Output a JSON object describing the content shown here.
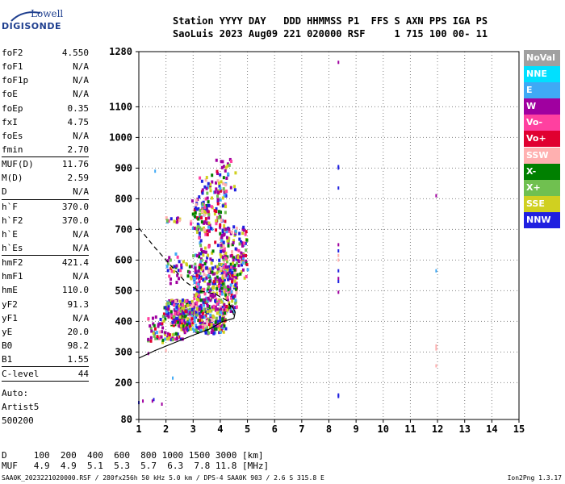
{
  "logo": {
    "line1": "Lowell",
    "line2": "DIGISONDE"
  },
  "header": {
    "line1": "Station YYYY DAY   DDD HHMMSS P1  FFS S AXN PPS IGA PS",
    "line2": "SaoLuis 2023 Aug09 221 020000 RSF     1 715 100 00- 11"
  },
  "params": [
    [
      {
        "name": "foF2",
        "value": "4.550"
      },
      {
        "name": "foF1",
        "value": "N/A"
      },
      {
        "name": "foF1p",
        "value": "N/A"
      },
      {
        "name": "foE",
        "value": "N/A"
      },
      {
        "name": "foEp",
        "value": "0.35"
      },
      {
        "name": "fxI",
        "value": "4.75"
      },
      {
        "name": "foEs",
        "value": "N/A"
      },
      {
        "name": "fmin",
        "value": "2.70"
      }
    ],
    [
      {
        "name": "MUF(D)",
        "value": "11.76"
      },
      {
        "name": "M(D)",
        "value": "2.59"
      },
      {
        "name": "D",
        "value": "N/A"
      }
    ],
    [
      {
        "name": "h`F",
        "value": "370.0"
      },
      {
        "name": "h`F2",
        "value": "370.0"
      },
      {
        "name": "h`E",
        "value": "N/A"
      },
      {
        "name": "h`Es",
        "value": "N/A"
      }
    ],
    [
      {
        "name": "hmF2",
        "value": "421.4"
      },
      {
        "name": "hmF1",
        "value": "N/A"
      },
      {
        "name": "hmE",
        "value": "110.0"
      },
      {
        "name": "yF2",
        "value": "91.3"
      },
      {
        "name": "yF1",
        "value": "N/A"
      },
      {
        "name": "yE",
        "value": "20.0"
      },
      {
        "name": "B0",
        "value": "98.2"
      },
      {
        "name": "B1",
        "value": "1.55"
      }
    ],
    [
      {
        "name": "C-level",
        "value": "44"
      }
    ]
  ],
  "auto": {
    "line1": "Auto:",
    "line2": "Artist5",
    "line3": "500200"
  },
  "legend": [
    {
      "label": "NoVal",
      "color": "#a0a0a0",
      "text": "#ffffff"
    },
    {
      "label": "NNE",
      "color": "#00e0ff",
      "text": "#ffffff"
    },
    {
      "label": "E",
      "color": "#3fa9f5",
      "text": "#ffffff"
    },
    {
      "label": "W",
      "color": "#a000a0",
      "text": "#ffffff"
    },
    {
      "label": "Vo-",
      "color": "#ff40a0",
      "text": "#ffffff"
    },
    {
      "label": "Vo+",
      "color": "#e00030",
      "text": "#ffffff"
    },
    {
      "label": "SSW",
      "color": "#ffb0b0",
      "text": "#ffffff"
    },
    {
      "label": "X-",
      "color": "#008000",
      "text": "#ffffff"
    },
    {
      "label": "X+",
      "color": "#70c050",
      "text": "#ffffff"
    },
    {
      "label": "SSE",
      "color": "#d0d020",
      "text": "#ffffff"
    },
    {
      "label": "NNW",
      "color": "#2020e0",
      "text": "#ffffff"
    }
  ],
  "bottom": {
    "line1": "D     100  200  400  600  800 1000 1500 3000 [km]",
    "line2": "MUF   4.9  4.9  5.1  5.3  5.7  6.3  7.8 11.8 [MHz]"
  },
  "footer": {
    "text": "SAA0K_2023221020000.RSF / 280fx256h 50 kHz 5.0 km / DPS-4 SAA0K 903 / 2.6 S 315.8 E",
    "version": "Ion2Png 1.3.17"
  },
  "chart_data": {
    "type": "scatter",
    "xlim": [
      1,
      15
    ],
    "ylim": [
      80,
      1280
    ],
    "x_ticks": [
      "1",
      "2",
      "3",
      "4",
      "5",
      "6",
      "7",
      "8",
      "9",
      "10",
      "11",
      "12",
      "13",
      "14",
      "15"
    ],
    "y_ticks": [
      80,
      200,
      300,
      400,
      500,
      600,
      700,
      800,
      900,
      1000,
      1100,
      1280
    ],
    "grid": true,
    "trace_dashed": [
      [
        1.0,
        705
      ],
      [
        1.6,
        640
      ],
      [
        2.2,
        580
      ],
      [
        2.7,
        530
      ],
      [
        3.2,
        500
      ],
      [
        3.8,
        490
      ],
      [
        4.3,
        465
      ],
      [
        4.5,
        420
      ]
    ],
    "trace_solid": [
      [
        1.0,
        280
      ],
      [
        1.6,
        305
      ],
      [
        2.3,
        330
      ],
      [
        3.0,
        355
      ],
      [
        3.6,
        375
      ],
      [
        4.1,
        400
      ],
      [
        4.5,
        410
      ],
      [
        4.55,
        430
      ],
      [
        4.45,
        448
      ],
      [
        4.3,
        455
      ]
    ],
    "echoes": [
      {
        "x": 8.35,
        "y": 1245,
        "c": "#a000a0"
      },
      {
        "x": 8.35,
        "y": 905,
        "c": "#2020e0"
      },
      {
        "x": 8.35,
        "y": 900,
        "c": "#2020e0"
      },
      {
        "x": 8.35,
        "y": 835,
        "c": "#2020e0"
      },
      {
        "x": 8.35,
        "y": 650,
        "c": "#a000a0"
      },
      {
        "x": 8.35,
        "y": 630,
        "c": "#2020e0"
      },
      {
        "x": 8.35,
        "y": 615,
        "c": "#ffb0b0"
      },
      {
        "x": 8.35,
        "y": 600,
        "c": "#ffb0b0"
      },
      {
        "x": 8.35,
        "y": 565,
        "c": "#2020e0"
      },
      {
        "x": 8.35,
        "y": 540,
        "c": "#a000a0"
      },
      {
        "x": 8.35,
        "y": 530,
        "c": "#2020e0"
      },
      {
        "x": 8.35,
        "y": 495,
        "c": "#a000a0"
      },
      {
        "x": 8.35,
        "y": 160,
        "c": "#2020e0"
      },
      {
        "x": 8.35,
        "y": 155,
        "c": "#2020e0"
      },
      {
        "x": 11.95,
        "y": 810,
        "c": "#a000a0"
      },
      {
        "x": 11.95,
        "y": 565,
        "c": "#3fa9f5"
      },
      {
        "x": 11.95,
        "y": 320,
        "c": "#ffb0b0"
      },
      {
        "x": 11.95,
        "y": 310,
        "c": "#ffb0b0"
      },
      {
        "x": 11.95,
        "y": 255,
        "c": "#ffb0b0"
      },
      {
        "x": 1.6,
        "y": 890,
        "c": "#3fa9f5"
      },
      {
        "x": 2.25,
        "y": 215,
        "c": "#3fa9f5"
      },
      {
        "x": 1.55,
        "y": 145,
        "c": "#2020e0"
      },
      {
        "x": 1.15,
        "y": 140,
        "c": "#a000a0"
      },
      {
        "x": 1.5,
        "y": 140,
        "c": "#a000a0"
      },
      {
        "x": 1.0,
        "y": 135,
        "c": "#2020e0"
      },
      {
        "x": 1.85,
        "y": 130,
        "c": "#a000a0"
      },
      {
        "x": 1.35,
        "y": 295,
        "c": "#a000a0"
      },
      {
        "x": 2.0,
        "y": 305,
        "c": "#ffb0b0"
      }
    ],
    "clusters": [
      {
        "xr": [
          1.9,
          2.5
        ],
        "yr": [
          720,
          740
        ],
        "n": 14
      },
      {
        "xr": [
          2.9,
          3.6
        ],
        "yr": [
          690,
          800
        ],
        "n": 70
      },
      {
        "xr": [
          3.2,
          4.2
        ],
        "yr": [
          580,
          880
        ],
        "n": 150
      },
      {
        "xr": [
          3.8,
          4.6
        ],
        "yr": [
          820,
          940
        ],
        "n": 30
      },
      {
        "xr": [
          2.0,
          3.4
        ],
        "yr": [
          520,
          620
        ],
        "n": 55
      },
      {
        "xr": [
          4.0,
          5.0
        ],
        "yr": [
          540,
          710
        ],
        "n": 140
      },
      {
        "xr": [
          3.0,
          4.6
        ],
        "yr": [
          430,
          580
        ],
        "n": 360
      },
      {
        "xr": [
          1.9,
          3.0
        ],
        "yr": [
          380,
          470
        ],
        "n": 180
      },
      {
        "xr": [
          2.5,
          4.2
        ],
        "yr": [
          360,
          440
        ],
        "n": 230
      },
      {
        "xr": [
          1.3,
          2.0
        ],
        "yr": [
          330,
          420
        ],
        "n": 45
      },
      {
        "xr": [
          2.0,
          2.6
        ],
        "yr": [
          340,
          360
        ],
        "n": 25
      }
    ]
  }
}
